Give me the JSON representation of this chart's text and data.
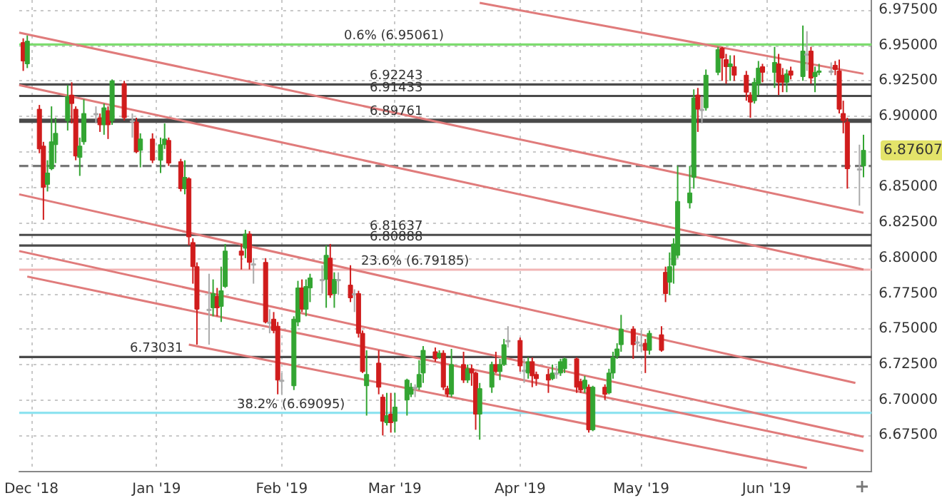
{
  "chart_data": {
    "type": "candlestick",
    "ylim": [
      6.65,
      6.982
    ],
    "yticks": [
      {
        "value": 6.675,
        "label": "6.67500"
      },
      {
        "value": 6.7,
        "label": "6.70000"
      },
      {
        "value": 6.725,
        "label": "6.72500"
      },
      {
        "value": 6.75,
        "label": "6.75000"
      },
      {
        "value": 6.775,
        "label": "6.77500"
      },
      {
        "value": 6.8,
        "label": "6.80000"
      },
      {
        "value": 6.825,
        "label": "6.82500"
      },
      {
        "value": 6.85,
        "label": "6.85000"
      },
      {
        "value": 6.875,
        "label": null
      },
      {
        "value": 6.9,
        "label": "6.90000"
      },
      {
        "value": 6.925,
        "label": "6.92500"
      },
      {
        "value": 6.95,
        "label": "6.95000"
      },
      {
        "value": 6.975,
        "label": "6.97500"
      }
    ],
    "xlim": [
      "2018-11-28",
      "2019-06-27"
    ],
    "xticks": [
      {
        "value": "2018-12-01",
        "label": "Dec '18"
      },
      {
        "value": "2019-01-01",
        "label": "Jan '19"
      },
      {
        "value": "2019-02-01",
        "label": "Feb '19"
      },
      {
        "value": "2019-03-01",
        "label": "Mar '19"
      },
      {
        "value": "2019-04-01",
        "label": "Apr '19"
      },
      {
        "value": "2019-05-01",
        "label": "May '19"
      },
      {
        "value": "2019-06-01",
        "label": "Jun '19"
      }
    ],
    "grid": true,
    "marker": "none",
    "series": [
      {
        "type": "line",
        "color": "#e07b7b",
        "x": [
          "2019-03-22",
          "2019-06-25"
        ],
        "values": [
          6.98,
          6.93
        ]
      },
      {
        "type": "line",
        "color": "#e07b7b",
        "x": [
          "2018-11-28",
          "2019-06-25"
        ],
        "values": [
          6.959,
          6.832
        ]
      },
      {
        "type": "line",
        "color": "#e07b7b",
        "x": [
          "2018-11-28",
          "2019-06-25"
        ],
        "values": [
          6.922,
          6.792
        ]
      },
      {
        "type": "line",
        "color": "#e07b7b",
        "x": [
          "2018-11-28",
          "2019-06-23"
        ],
        "values": [
          6.845,
          6.712
        ]
      },
      {
        "type": "line",
        "color": "#e07b7b",
        "x": [
          "2018-11-28",
          "2019-06-25"
        ],
        "values": [
          6.805,
          6.674
        ]
      },
      {
        "type": "line",
        "color": "#e07b7b",
        "x": [
          "2018-11-30",
          "2019-06-25"
        ],
        "values": [
          6.787,
          6.664
        ]
      },
      {
        "type": "line",
        "color": "#e07b7b",
        "x": [
          "2019-01-09",
          "2019-06-11"
        ],
        "values": [
          6.739,
          6.652
        ]
      },
      {
        "type": "candlestick",
        "x": [
          "2018-11-29",
          "2018-11-30",
          "2018-12-03",
          "2018-12-04",
          "2018-12-05",
          "2018-12-06",
          "2018-12-07",
          "2018-12-10",
          "2018-12-11",
          "2018-12-12",
          "2018-12-13",
          "2018-12-14",
          "2018-12-17",
          "2018-12-18",
          "2018-12-19",
          "2018-12-20",
          "2018-12-21",
          "2018-12-24",
          "2018-12-26",
          "2018-12-27",
          "2018-12-28",
          "2018-12-31",
          "2019-01-02",
          "2019-01-03",
          "2019-01-04",
          "2019-01-07",
          "2019-01-08",
          "2019-01-09",
          "2019-01-10",
          "2019-01-11",
          "2019-01-14",
          "2019-01-15",
          "2019-01-16",
          "2019-01-17",
          "2019-01-18",
          "2019-01-22",
          "2019-01-23",
          "2019-01-24",
          "2019-01-25",
          "2019-01-28",
          "2019-01-29",
          "2019-01-30",
          "2019-01-31",
          "2019-02-01",
          "2019-02-04",
          "2019-02-05",
          "2019-02-06",
          "2019-02-07",
          "2019-02-08",
          "2019-02-11",
          "2019-02-12",
          "2019-02-13",
          "2019-02-14",
          "2019-02-15",
          "2019-02-18",
          "2019-02-19",
          "2019-02-20",
          "2019-02-21",
          "2019-02-22",
          "2019-02-25",
          "2019-02-26",
          "2019-02-27",
          "2019-02-28",
          "2019-03-01",
          "2019-03-04",
          "2019-03-05",
          "2019-03-06",
          "2019-03-07",
          "2019-03-08",
          "2019-03-11",
          "2019-03-12",
          "2019-03-13",
          "2019-03-14",
          "2019-03-15",
          "2019-03-18",
          "2019-03-19",
          "2019-03-20",
          "2019-03-21",
          "2019-03-22",
          "2019-03-25",
          "2019-03-26",
          "2019-03-27",
          "2019-03-28",
          "2019-03-29",
          "2019-04-01",
          "2019-04-02",
          "2019-04-03",
          "2019-04-04",
          "2019-04-05",
          "2019-04-08",
          "2019-04-09",
          "2019-04-10",
          "2019-04-11",
          "2019-04-12",
          "2019-04-15",
          "2019-04-16",
          "2019-04-17",
          "2019-04-18",
          "2019-04-19",
          "2019-04-22",
          "2019-04-23",
          "2019-04-24",
          "2019-04-25",
          "2019-04-26",
          "2019-04-29",
          "2019-04-30",
          "2019-05-01",
          "2019-05-02",
          "2019-05-03",
          "2019-05-06",
          "2019-05-07",
          "2019-05-08",
          "2019-05-09",
          "2019-05-10",
          "2019-05-13",
          "2019-05-14",
          "2019-05-15",
          "2019-05-16",
          "2019-05-17",
          "2019-05-20",
          "2019-05-21",
          "2019-05-22",
          "2019-05-23",
          "2019-05-24",
          "2019-05-27",
          "2019-05-28",
          "2019-05-29",
          "2019-05-30",
          "2019-05-31",
          "2019-06-03",
          "2019-06-04",
          "2019-06-05",
          "2019-06-06",
          "2019-06-07",
          "2019-06-10",
          "2019-06-11",
          "2019-06-12",
          "2019-06-13",
          "2019-06-14",
          "2019-06-17",
          "2019-06-18",
          "2019-06-19",
          "2019-06-20",
          "2019-06-21",
          "2019-06-24",
          "2019-06-25"
        ],
        "ohlc": [
          [
            6.952,
            6.955,
            6.932,
            6.939
          ],
          [
            6.937,
            6.957,
            6.934,
            6.953
          ],
          [
            6.905,
            6.908,
            6.874,
            6.877
          ],
          [
            6.879,
            6.882,
            6.827,
            6.85
          ],
          [
            6.852,
            6.869,
            6.847,
            6.86
          ],
          [
            6.863,
            6.907,
            6.862,
            6.882
          ],
          [
            6.88,
            6.899,
            6.867,
            6.888
          ],
          [
            6.897,
            6.922,
            6.89,
            6.914
          ],
          [
            6.915,
            6.924,
            6.895,
            6.909
          ],
          [
            6.905,
            6.907,
            6.869,
            6.872
          ],
          [
            6.871,
            6.885,
            6.858,
            6.879
          ],
          [
            6.882,
            6.912,
            6.88,
            6.902
          ],
          [
            6.902,
            6.907,
            6.895,
            6.902
          ],
          [
            6.899,
            6.902,
            6.889,
            6.894
          ],
          [
            6.894,
            6.909,
            6.887,
            6.906
          ],
          [
            6.904,
            6.907,
            6.884,
            6.894
          ],
          [
            6.897,
            6.926,
            6.894,
            6.925
          ],
          [
            6.923,
            6.925,
            6.897,
            6.899
          ],
          [
            6.897,
            6.902,
            6.885,
            6.897
          ],
          [
            6.896,
            6.899,
            6.874,
            6.875
          ],
          [
            6.876,
            6.888,
            6.864,
            6.884
          ],
          [
            6.884,
            6.888,
            6.867,
            6.869
          ],
          [
            6.869,
            6.885,
            6.86,
            6.88
          ],
          [
            6.88,
            6.895,
            6.877,
            6.884
          ],
          [
            6.883,
            6.885,
            6.865,
            6.867
          ],
          [
            6.868,
            6.87,
            6.847,
            6.849
          ],
          [
            6.849,
            6.869,
            6.845,
            6.857
          ],
          [
            6.856,
            6.857,
            6.809,
            6.815
          ],
          [
            6.811,
            6.814,
            6.782,
            6.794
          ],
          [
            6.794,
            6.797,
            6.739,
            6.764
          ],
          [
            6.764,
            6.789,
            6.739,
            6.764
          ],
          [
            6.765,
            6.785,
            6.759,
            6.775
          ],
          [
            6.773,
            6.779,
            6.759,
            6.765
          ],
          [
            6.766,
            6.794,
            6.755,
            6.777
          ],
          [
            6.78,
            6.81,
            6.779,
            6.805
          ],
          [
            6.805,
            6.81,
            6.792,
            6.802
          ],
          [
            6.807,
            6.82,
            6.8,
            6.817
          ],
          [
            6.817,
            6.819,
            6.792,
            6.797
          ],
          [
            6.796,
            6.8,
            6.782,
            6.796
          ],
          [
            6.797,
            6.8,
            6.754,
            6.755
          ],
          [
            6.755,
            6.764,
            6.747,
            6.755
          ],
          [
            6.757,
            6.762,
            6.747,
            6.749
          ],
          [
            6.752,
            6.755,
            6.704,
            6.714
          ],
          [
            6.714,
            6.719,
            6.704,
            6.714
          ],
          [
            6.71,
            6.759,
            6.707,
            6.757
          ],
          [
            6.755,
            6.784,
            6.752,
            6.779
          ],
          [
            6.779,
            6.785,
            6.762,
            6.764
          ],
          [
            6.764,
            6.785,
            6.759,
            6.78
          ],
          [
            6.779,
            6.789,
            6.769,
            6.786
          ],
          [
            6.785,
            6.795,
            6.775,
            6.785
          ],
          [
            6.785,
            6.809,
            6.765,
            6.802
          ],
          [
            6.8,
            6.81,
            6.772,
            6.774
          ],
          [
            6.775,
            6.79,
            6.765,
            6.785
          ],
          [
            6.785,
            6.79,
            6.774,
            6.785
          ],
          [
            6.781,
            6.795,
            6.769,
            6.772
          ],
          [
            6.775,
            6.778,
            6.762,
            6.775
          ],
          [
            6.775,
            6.777,
            6.744,
            6.747
          ],
          [
            6.747,
            6.749,
            6.719,
            6.72
          ],
          [
            6.71,
            6.735,
            6.689,
            6.718
          ],
          [
            6.726,
            6.735,
            6.704,
            6.709
          ],
          [
            6.702,
            6.704,
            6.675,
            6.685
          ],
          [
            6.684,
            6.705,
            6.682,
            6.689
          ],
          [
            6.69,
            6.705,
            6.677,
            6.684
          ],
          [
            6.685,
            6.705,
            6.677,
            6.695
          ],
          [
            6.7,
            6.715,
            6.689,
            6.714
          ],
          [
            6.704,
            6.712,
            6.702,
            6.709
          ],
          [
            6.709,
            6.711,
            6.702,
            6.709
          ],
          [
            6.709,
            6.728,
            6.707,
            6.718
          ],
          [
            6.719,
            6.738,
            6.712,
            6.735
          ],
          [
            6.734,
            6.737,
            6.727,
            6.729
          ],
          [
            6.73,
            6.735,
            6.729,
            6.733
          ],
          [
            6.733,
            6.735,
            6.707,
            6.709
          ],
          [
            6.708,
            6.71,
            6.702,
            6.704
          ],
          [
            6.704,
            6.736,
            6.702,
            6.725
          ],
          [
            6.725,
            6.734,
            6.712,
            6.714
          ],
          [
            6.714,
            6.725,
            6.712,
            6.722
          ],
          [
            6.722,
            6.725,
            6.71,
            6.719
          ],
          [
            6.719,
            6.72,
            6.679,
            6.69
          ],
          [
            6.69,
            6.712,
            6.672,
            6.708
          ],
          [
            6.709,
            6.727,
            6.705,
            6.725
          ],
          [
            6.725,
            6.734,
            6.719,
            6.72
          ],
          [
            6.72,
            6.729,
            6.714,
            6.725
          ],
          [
            6.725,
            6.743,
            6.724,
            6.739
          ],
          [
            6.742,
            6.752,
            6.737,
            6.742
          ],
          [
            6.742,
            6.744,
            6.72,
            6.724
          ],
          [
            6.721,
            6.729,
            6.712,
            6.721
          ],
          [
            6.719,
            6.73,
            6.715,
            6.727
          ],
          [
            6.727,
            6.73,
            6.709,
            6.717
          ],
          [
            6.718,
            6.72,
            6.71,
            6.715
          ],
          [
            6.718,
            6.722,
            6.705,
            6.714
          ],
          [
            6.715,
            6.725,
            6.714,
            6.719
          ],
          [
            6.719,
            6.724,
            6.715,
            6.719
          ],
          [
            6.719,
            6.729,
            6.717,
            6.727
          ],
          [
            6.722,
            6.73,
            6.719,
            6.729
          ],
          [
            6.729,
            6.73,
            6.705,
            6.709
          ],
          [
            6.713,
            6.715,
            6.705,
            6.707
          ],
          [
            6.708,
            6.717,
            6.705,
            6.714
          ],
          [
            6.709,
            6.711,
            6.677,
            6.679
          ],
          [
            6.679,
            6.71,
            6.678,
            6.709
          ],
          [
            6.709,
            6.711,
            6.7,
            6.704
          ],
          [
            6.705,
            6.722,
            6.704,
            6.719
          ],
          [
            6.719,
            6.734,
            6.715,
            6.73
          ],
          [
            6.731,
            6.74,
            6.729,
            6.736
          ],
          [
            6.739,
            6.76,
            6.734,
            6.75
          ],
          [
            6.75,
            6.752,
            6.729,
            6.739
          ],
          [
            6.741,
            6.745,
            6.734,
            6.741
          ],
          [
            6.739,
            6.749,
            6.734,
            6.739
          ],
          [
            6.74,
            6.743,
            6.719,
            6.735
          ],
          [
            6.735,
            6.749,
            6.732,
            6.747
          ],
          [
            6.746,
            6.752,
            6.734,
            6.735
          ],
          [
            6.79,
            6.794,
            6.769,
            6.775
          ],
          [
            6.783,
            6.804,
            6.774,
            6.794
          ],
          [
            6.795,
            6.814,
            6.782,
            6.81
          ],
          [
            6.802,
            6.865,
            6.8,
            6.84
          ],
          [
            6.839,
            6.865,
            6.835,
            6.846
          ],
          [
            6.857,
            6.919,
            6.849,
            6.913
          ],
          [
            6.915,
            6.92,
            6.889,
            6.905
          ],
          [
            6.905,
            6.914,
            6.895,
            6.905
          ],
          [
            6.906,
            6.933,
            6.904,
            6.929
          ],
          [
            6.931,
            6.949,
            6.929,
            6.947
          ],
          [
            6.948,
            6.949,
            6.925,
            6.941
          ],
          [
            6.94,
            6.944,
            6.923,
            6.935
          ],
          [
            6.935,
            6.943,
            6.925,
            6.937
          ],
          [
            6.935,
            6.943,
            6.925,
            6.929
          ],
          [
            6.929,
            6.932,
            6.911,
            6.917
          ],
          [
            6.915,
            6.917,
            6.899,
            6.91
          ],
          [
            6.911,
            6.927,
            6.909,
            6.924
          ],
          [
            6.923,
            6.939,
            6.915,
            6.934
          ],
          [
            6.935,
            6.937,
            6.924,
            6.931
          ],
          [
            6.931,
            6.949,
            6.92,
            6.938
          ],
          [
            6.937,
            6.944,
            6.915,
            6.924
          ],
          [
            6.929,
            6.934,
            6.917,
            6.924
          ],
          [
            6.924,
            6.933,
            6.917,
            6.93
          ],
          [
            6.932,
            6.935,
            6.926,
            6.929
          ],
          [
            6.928,
            6.964,
            6.925,
            6.946
          ],
          [
            6.944,
            6.96,
            6.932,
            6.944
          ],
          [
            6.946,
            6.949,
            6.923,
            6.927
          ],
          [
            6.928,
            6.935,
            6.917,
            6.931
          ],
          [
            6.931,
            6.937,
            6.929,
            6.932
          ],
          [
            6.932,
            6.938,
            6.929,
            6.932
          ],
          [
            6.936,
            6.939,
            6.929,
            6.933
          ],
          [
            6.932,
            6.94,
            6.902,
            6.905
          ],
          [
            6.902,
            6.911,
            6.888,
            6.897
          ],
          [
            6.896,
            6.899,
            6.849,
            6.863
          ],
          [
            6.863,
            6.88,
            6.837,
            6.863
          ],
          [
            6.865,
            6.887,
            6.857,
            6.876
          ]
        ],
        "colors": [
          "#d01c1c",
          "#33a532",
          "#d01c1c",
          "#d01c1c",
          "#33a532",
          "#33a532",
          "#33a532",
          "#33a532",
          "#d01c1c",
          "#d01c1c",
          "#33a532",
          "#33a532",
          "#aaaaaa",
          "#d01c1c",
          "#33a532",
          "#d01c1c",
          "#33a532",
          "#d01c1c",
          "#aaaaaa",
          "#d01c1c",
          "#33a532",
          "#d01c1c",
          "#33a532",
          "#33a532",
          "#d01c1c",
          "#d01c1c",
          "#33a532",
          "#d01c1c",
          "#d01c1c",
          "#d01c1c",
          "#aaaaaa",
          "#33a532",
          "#d01c1c",
          "#33a532",
          "#33a532",
          "#d01c1c",
          "#33a532",
          "#d01c1c",
          "#aaaaaa",
          "#d01c1c",
          "#aaaaaa",
          "#d01c1c",
          "#d01c1c",
          "#aaaaaa",
          "#33a532",
          "#33a532",
          "#d01c1c",
          "#33a532",
          "#33a532",
          "#aaaaaa",
          "#33a532",
          "#d01c1c",
          "#33a532",
          "#aaaaaa",
          "#d01c1c",
          "#aaaaaa",
          "#d01c1c",
          "#d01c1c",
          "#33a532",
          "#d01c1c",
          "#d01c1c",
          "#33a532",
          "#d01c1c",
          "#33a532",
          "#33a532",
          "#33a532",
          "#aaaaaa",
          "#33a532",
          "#33a532",
          "#d01c1c",
          "#33a532",
          "#d01c1c",
          "#d01c1c",
          "#33a532",
          "#d01c1c",
          "#33a532",
          "#d01c1c",
          "#d01c1c",
          "#33a532",
          "#33a532",
          "#d01c1c",
          "#33a532",
          "#33a532",
          "#aaaaaa",
          "#d01c1c",
          "#aaaaaa",
          "#33a532",
          "#d01c1c",
          "#d01c1c",
          "#d01c1c",
          "#33a532",
          "#aaaaaa",
          "#33a532",
          "#33a532",
          "#d01c1c",
          "#d01c1c",
          "#33a532",
          "#d01c1c",
          "#33a532",
          "#d01c1c",
          "#33a532",
          "#33a532",
          "#33a532",
          "#33a532",
          "#d01c1c",
          "#aaaaaa",
          "#aaaaaa",
          "#d01c1c",
          "#33a532",
          "#d01c1c",
          "#d01c1c",
          "#33a532",
          "#33a532",
          "#33a532",
          "#33a532",
          "#33a532",
          "#d01c1c",
          "#aaaaaa",
          "#33a532",
          "#33a532",
          "#d01c1c",
          "#d01c1c",
          "#33a532",
          "#d01c1c",
          "#d01c1c",
          "#d01c1c",
          "#33a532",
          "#33a532",
          "#d01c1c",
          "#33a532",
          "#d01c1c",
          "#d01c1c",
          "#33a532",
          "#d01c1c",
          "#33a532",
          "#aaaaaa",
          "#d01c1c",
          "#33a532",
          "#33a532",
          "#aaaaaa",
          "#d01c1c",
          "#d01c1c",
          "#d01c1c",
          "#d01c1c",
          "#aaaaaa",
          "#33a532"
        ]
      }
    ],
    "ref_lines": [
      {
        "axis": "y",
        "value": 6.95061,
        "label": "0.6% (6.95061)",
        "color": "#7ddc6f"
      },
      {
        "axis": "y",
        "value": 6.92243,
        "label": "6.92243",
        "color": "#4a4a4a"
      },
      {
        "axis": "y",
        "value": 6.91433,
        "label": "6.91433",
        "color": "#4a4a4a"
      },
      {
        "axis": "y",
        "value": 6.89761,
        "label": "6.89761",
        "color": "#4a4a4a"
      },
      {
        "axis": "y",
        "value": 6.8962,
        "label": null,
        "color": "#4a4a4a"
      },
      {
        "axis": "y",
        "value": 6.865,
        "label": null,
        "color": "#777777",
        "line_style": "dashed"
      },
      {
        "axis": "y",
        "value": 6.81637,
        "label": "6.81637",
        "color": "#4a4a4a"
      },
      {
        "axis": "y",
        "value": 6.80888,
        "label": "6.80888",
        "color": "#4a4a4a"
      },
      {
        "axis": "y",
        "value": 6.79185,
        "label": "23.6% (6.79185)",
        "color": "#f2b5b5"
      },
      {
        "axis": "y",
        "value": 6.73031,
        "label": "6.73031",
        "color": "#4a4a4a"
      },
      {
        "axis": "y",
        "value": 6.69095,
        "label": "38.2% (6.69095)",
        "color": "#8fe3f0"
      }
    ],
    "annotations": [
      "6.87607"
    ]
  }
}
